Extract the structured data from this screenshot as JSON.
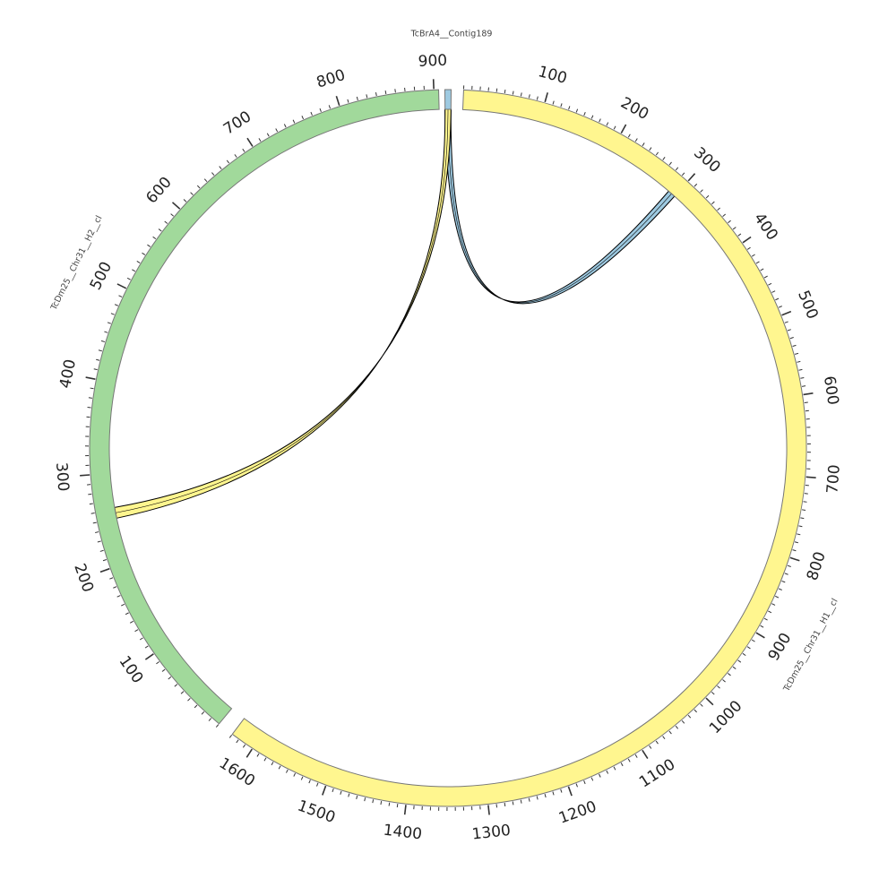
{
  "chart_data": {
    "type": "circos",
    "title": "",
    "segments": [
      {
        "id": "contig",
        "name": "TcBrA4__Contig189",
        "length": 6,
        "color": "#9ecae1",
        "labeled_ticks": []
      },
      {
        "id": "h1",
        "name": "TcDm25__Chr31__H1__cl",
        "length": 1630,
        "color": "#fff68f",
        "labeled_ticks": [
          100,
          200,
          300,
          400,
          500,
          600,
          700,
          800,
          900,
          1000,
          1100,
          1200,
          1300,
          1400,
          1500,
          1600
        ]
      },
      {
        "id": "h2",
        "name": "TcDm25__Chr31__H2__cl",
        "length": 905,
        "color": "#a1d99b",
        "labeled_ticks": [
          100,
          200,
          300,
          400,
          500,
          600,
          700,
          800,
          900
        ]
      }
    ],
    "links": [
      {
        "from_segment": "contig",
        "from_start": 0,
        "from_end": 6,
        "to_segment": "h1",
        "to_start": 290,
        "to_end": 300,
        "color": "#9ecae1"
      },
      {
        "from_segment": "contig",
        "from_start": 0,
        "from_end": 6,
        "to_segment": "h2",
        "to_start": 250,
        "to_end": 262,
        "color": "#fff68f"
      }
    ]
  }
}
